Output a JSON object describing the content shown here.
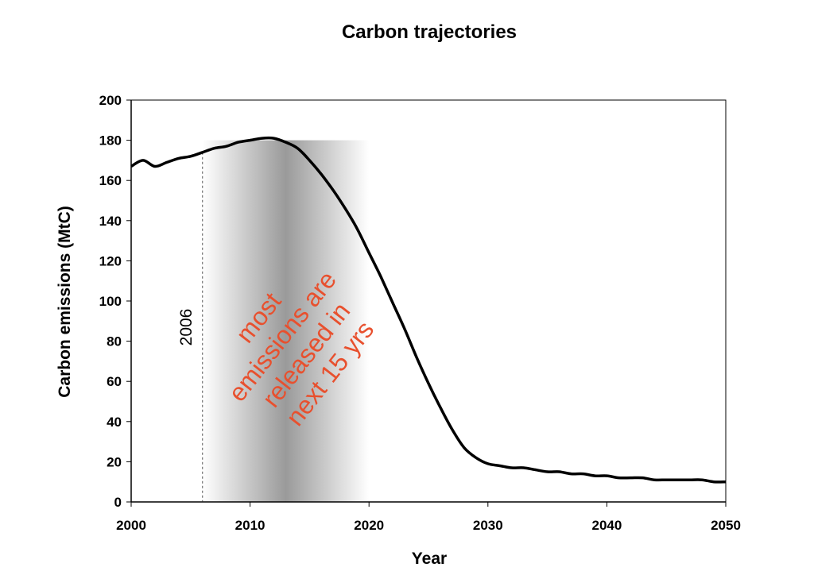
{
  "chart_data": {
    "type": "line",
    "title": "Carbon trajectories",
    "xlabel": "Year",
    "ylabel": "Carbon emissions (MtC)",
    "xlim": [
      2000,
      2050
    ],
    "ylim": [
      0,
      200
    ],
    "x_ticks": [
      2000,
      2010,
      2020,
      2030,
      2040,
      2050
    ],
    "y_ticks": [
      0,
      20,
      40,
      60,
      80,
      100,
      120,
      140,
      160,
      180,
      200
    ],
    "grid": false,
    "series": [
      {
        "color": "#000000",
        "x": [
          2000,
          2001,
          2002,
          2003,
          2004,
          2005,
          2006,
          2007,
          2008,
          2009,
          2010,
          2011,
          2012,
          2013,
          2014,
          2015,
          2016,
          2017,
          2018,
          2019,
          2020,
          2021,
          2022,
          2023,
          2024,
          2025,
          2026,
          2027,
          2028,
          2029,
          2030,
          2031,
          2032,
          2033,
          2034,
          2035,
          2036,
          2037,
          2038,
          2039,
          2040,
          2041,
          2042,
          2043,
          2044,
          2045,
          2046,
          2047,
          2048,
          2049,
          2050
        ],
        "y": [
          167,
          170,
          167,
          169,
          171,
          172,
          174,
          176,
          177,
          179,
          180,
          181,
          181,
          179,
          176,
          170,
          163,
          155,
          146,
          136,
          124,
          112,
          99,
          86,
          72,
          59,
          47,
          36,
          27,
          22,
          19,
          18,
          17,
          17,
          16,
          15,
          15,
          14,
          14,
          13,
          13,
          12,
          12,
          12,
          11,
          11,
          11,
          11,
          11,
          10,
          10
        ]
      }
    ],
    "marker": {
      "x": 2006,
      "label": "2006",
      "color": "#555555"
    },
    "shaded_band": {
      "x_start": 2006,
      "x_end": 2020,
      "peak_x": 2013
    },
    "annotation": {
      "lines": [
        "most",
        "emissions are",
        "released in",
        "next 15 yrs"
      ],
      "color": "#e8502e"
    }
  }
}
